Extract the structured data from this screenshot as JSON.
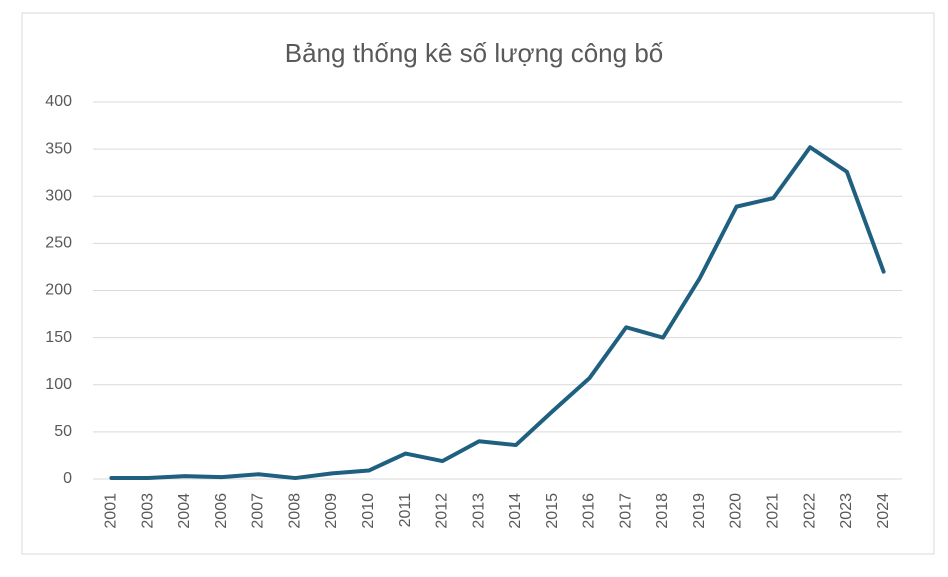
{
  "chart_data": {
    "type": "line",
    "title": "Bảng thống kê số lượng công bố",
    "categories": [
      "2001",
      "2003",
      "2004",
      "2006",
      "2007",
      "2008",
      "2009",
      "2010",
      "2011",
      "2012",
      "2013",
      "2014",
      "2015",
      "2016",
      "2017",
      "2018",
      "2019",
      "2020",
      "2021",
      "2022",
      "2023",
      "2024"
    ],
    "values": [
      1,
      1,
      3,
      2,
      5,
      1,
      6,
      9,
      27,
      19,
      40,
      36,
      72,
      107,
      161,
      150,
      213,
      289,
      298,
      352,
      326,
      220
    ],
    "color": "#1f5f80",
    "ylim": [
      0,
      400
    ],
    "yticks": [
      0,
      50,
      100,
      150,
      200,
      250,
      300,
      350,
      400
    ],
    "grid": true
  }
}
